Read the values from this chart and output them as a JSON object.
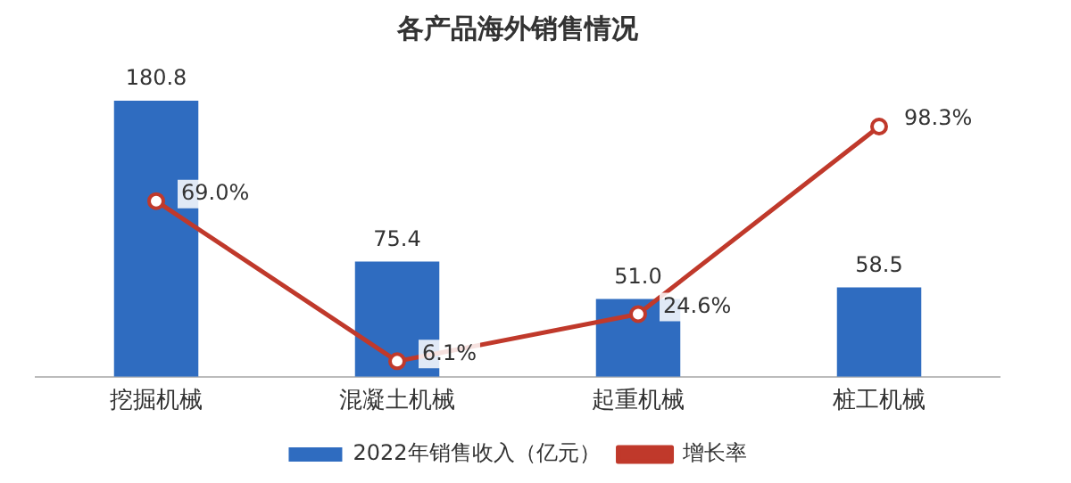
{
  "chart_data": {
    "type": "bar",
    "title": "各产品海外销售情况",
    "categories": [
      "挖掘机械",
      "混凝土机械",
      "起重机械",
      "桩工机械"
    ],
    "series": [
      {
        "name": "2022年销售收入（亿元）",
        "color": "#2f6cc0",
        "values": [
          180.8,
          75.4,
          51.0,
          58.5
        ],
        "value_labels": [
          "180.8",
          "75.4",
          "51.0",
          "58.5"
        ]
      },
      {
        "name": "增长率",
        "type": "line",
        "axis": "y2",
        "color": "#c0392b",
        "values": [
          69.0,
          6.1,
          24.6,
          98.3
        ],
        "value_labels": [
          "69.0%",
          "6.1%",
          "24.6%",
          "98.3%"
        ]
      }
    ],
    "legend": "bottom",
    "grid": false,
    "marker": "circle",
    "tick_labels": "x"
  }
}
